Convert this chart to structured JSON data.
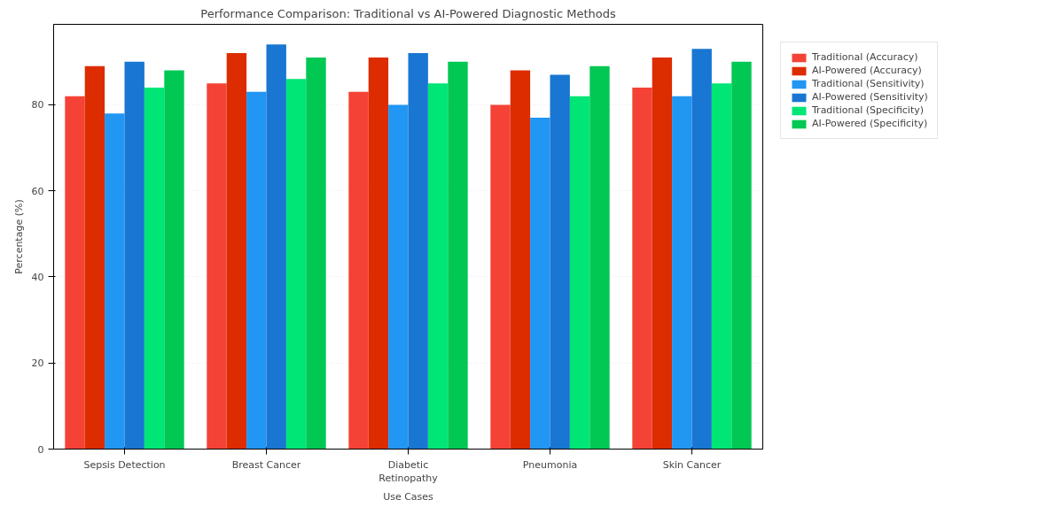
{
  "chart_data": {
    "type": "bar",
    "title": "Performance Comparison: Traditional vs AI-Powered Diagnostic Methods",
    "xlabel": "Use Cases",
    "ylabel": "Percentage (%)",
    "categories": [
      "Sepsis Detection",
      "Breast Cancer",
      "Diabetic Retinopathy",
      "Pneumonia",
      "Skin Cancer"
    ],
    "series": [
      {
        "name": "Traditional (Accuracy)",
        "color": "#f44336",
        "values": [
          82,
          85,
          83,
          80,
          84
        ]
      },
      {
        "name": "AI-Powered (Accuracy)",
        "color": "#dd2c00",
        "values": [
          89,
          92,
          91,
          88,
          91
        ]
      },
      {
        "name": "Traditional (Sensitivity)",
        "color": "#2196f3",
        "values": [
          78,
          83,
          80,
          77,
          82
        ]
      },
      {
        "name": "AI-Powered (Sensitivity)",
        "color": "#1976d2",
        "values": [
          90,
          94,
          92,
          87,
          93
        ]
      },
      {
        "name": "Traditional (Specificity)",
        "color": "#00e676",
        "values": [
          84,
          86,
          85,
          82,
          85
        ]
      },
      {
        "name": "AI-Powered (Specificity)",
        "color": "#00c853",
        "values": [
          88,
          91,
          90,
          89,
          90
        ]
      }
    ],
    "ylim": [
      0,
      98.7
    ],
    "yticks": [
      0,
      20,
      40,
      60,
      80
    ],
    "grid": "y",
    "legend": "right"
  }
}
